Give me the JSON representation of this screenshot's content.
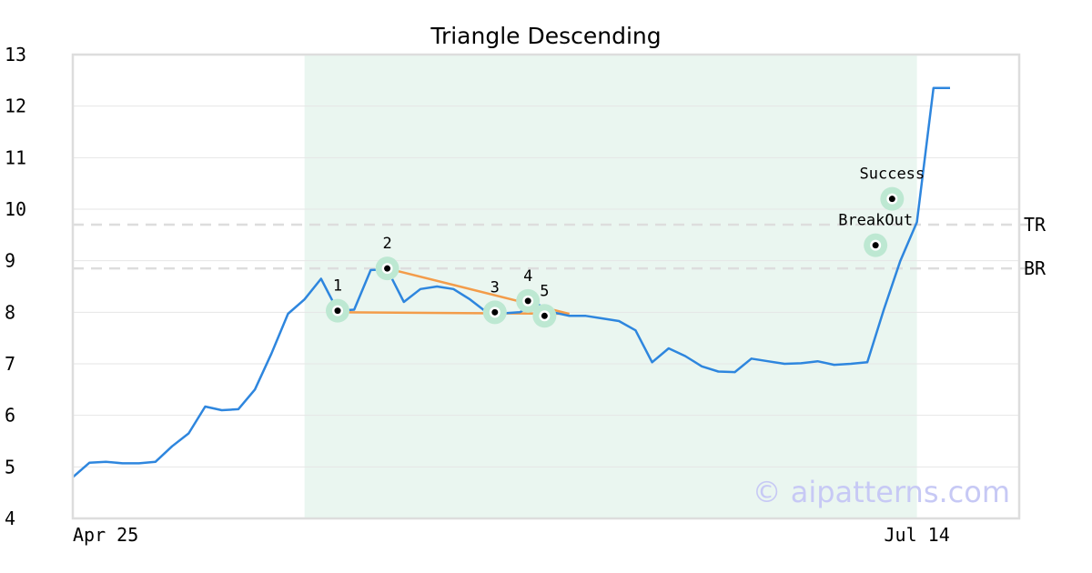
{
  "chart_data": {
    "type": "line",
    "title": "Triangle Descending",
    "xlabel": "",
    "ylabel": "",
    "ylim": [
      4,
      13
    ],
    "yticks": [
      "4",
      "5",
      "6",
      "7",
      "8",
      "9",
      "10",
      "11",
      "12",
      "13"
    ],
    "xticks": [
      {
        "index": 0,
        "label": "Apr 25"
      },
      {
        "index": 51,
        "label": "Jul 14"
      }
    ],
    "grid": true,
    "series": [
      {
        "color": "#2e86de",
        "values": [
          4.8,
          5.08,
          5.1,
          5.07,
          5.07,
          5.1,
          5.4,
          5.65,
          6.17,
          6.1,
          6.12,
          6.5,
          7.2,
          7.97,
          8.25,
          8.65,
          8.03,
          8.05,
          8.82,
          8.83,
          8.2,
          8.45,
          8.5,
          8.45,
          8.25,
          8.0,
          7.98,
          8.0,
          8.17,
          8.0,
          7.93,
          7.93,
          7.88,
          7.83,
          7.65,
          7.03,
          7.3,
          7.15,
          6.95,
          6.85,
          6.84,
          7.1,
          7.05,
          7.0,
          7.01,
          7.05,
          6.98,
          7.0,
          7.03,
          8.05,
          9.0,
          9.75,
          12.35,
          12.35
        ]
      }
    ],
    "highlight_region": {
      "from_index": 14,
      "to_index": 51,
      "color": "#eaf6f0"
    },
    "reference_lines": [
      {
        "label": "TR",
        "value": 9.7
      },
      {
        "label": "BR",
        "value": 8.85
      }
    ],
    "trendlines": [
      {
        "color": "#f39c4a",
        "from": {
          "index": 16,
          "value": 8.0
        },
        "to": {
          "index": 30,
          "value": 7.97
        }
      },
      {
        "color": "#f39c4a",
        "from": {
          "index": 19,
          "value": 8.85
        },
        "to": {
          "index": 30,
          "value": 7.97
        }
      }
    ],
    "markers": [
      {
        "label": "1",
        "index": 16,
        "value": 8.03
      },
      {
        "label": "2",
        "index": 19,
        "value": 8.85
      },
      {
        "label": "3",
        "index": 25.5,
        "value": 8.0
      },
      {
        "label": "4",
        "index": 27.5,
        "value": 8.22
      },
      {
        "label": "5",
        "index": 28.5,
        "value": 7.93
      },
      {
        "label": "BreakOut",
        "index": 48.5,
        "value": 9.3
      },
      {
        "label": "Success",
        "index": 49.5,
        "value": 10.2
      }
    ],
    "watermark": "© aipatterns.com"
  }
}
